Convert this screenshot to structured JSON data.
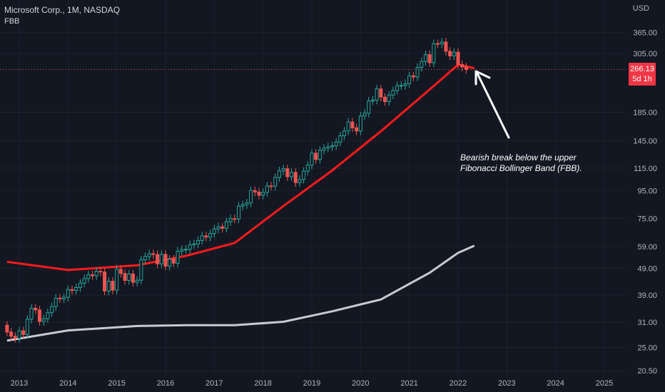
{
  "header": {
    "symbol_line": "Microsoft Corp., 1M, NASDAQ",
    "indicator": "FBB"
  },
  "axis": {
    "currency": "USD"
  },
  "price_tag": {
    "price": "266.13",
    "countdown": "5d 1h"
  },
  "annotation": {
    "line1": "Bearish break below the upper",
    "line2": "Fibonacci Bollinger Band (FBB)."
  },
  "colors": {
    "background": "#131722",
    "up": "#26a69a",
    "down": "#ef5350",
    "fbb_upper": "#ff1b1b",
    "fbb_basis": "#c9c9d1",
    "annotation_arrow": "#ffffff"
  },
  "chart_data": {
    "type": "candlestick",
    "y_scale": "log",
    "y_ticks": [
      "365.00",
      "305.00",
      "185.00",
      "145.00",
      "115.00",
      "95.00",
      "75.00",
      "59.00",
      "49.00",
      "39.00",
      "31.00",
      "25.00",
      "20.50"
    ],
    "x_ticks": [
      "2013",
      "2014",
      "2015",
      "2016",
      "2017",
      "2018",
      "2019",
      "2020",
      "2021",
      "2022",
      "2023",
      "2024",
      "2025"
    ],
    "current_price": 266.13,
    "series": [
      {
        "name": "Microsoft Corp. monthly",
        "style": "candles"
      },
      {
        "name": "FBB upper",
        "style": "line"
      },
      {
        "name": "FBB basis",
        "style": "line"
      }
    ],
    "close": [
      28.5,
      27.5,
      27.0,
      28.8,
      27.9,
      31.8,
      34.9,
      34.4,
      31.2,
      31.9,
      33.6,
      35.4,
      38.0,
      37.8,
      38.3,
      40.9,
      40.6,
      41.6,
      43.2,
      44.9,
      46.4,
      46.0,
      47.8,
      47.5,
      40.4,
      43.9,
      40.7,
      48.6,
      46.9,
      44.2,
      46.7,
      43.5,
      44.3,
      52.7,
      54.2,
      55.5,
      55.1,
      50.9,
      55.2,
      49.9,
      53.0,
      51.2,
      56.7,
      57.5,
      57.6,
      59.9,
      60.3,
      62.1,
      64.6,
      63.9,
      65.9,
      68.5,
      69.8,
      68.9,
      72.9,
      74.8,
      74.5,
      83.2,
      84.2,
      85.5,
      95.0,
      93.8,
      91.3,
      93.5,
      98.8,
      98.6,
      106.1,
      112.3,
      114.4,
      106.8,
      110.9,
      101.6,
      104.4,
      112.0,
      117.9,
      130.6,
      123.7,
      133.9,
      136.3,
      137.9,
      139.0,
      143.4,
      151.4,
      157.7,
      170.2,
      162.0,
      157.7,
      179.2,
      183.3,
      203.5,
      205.0,
      225.5,
      210.3,
      202.5,
      214.1,
      222.4,
      231.9,
      232.4,
      235.8,
      252.2,
      249.7,
      270.9,
      284.9,
      301.9,
      281.9,
      331.6,
      330.6,
      336.3,
      310.9,
      298.8,
      308.3,
      277.5,
      271.9,
      266.1
    ],
    "fbb_upper_anchor_dates": [
      "2012-10",
      "2014-01",
      "2015-06",
      "2016-06",
      "2017-06",
      "2018-06",
      "2019-06",
      "2020-06",
      "2021-06",
      "2022-01",
      "2022-05"
    ],
    "fbb_upper_anchor_values": [
      51.8,
      48.3,
      50.3,
      54.5,
      60.8,
      83.2,
      112.7,
      157.3,
      224.4,
      277.2,
      269.0
    ],
    "fbb_basis_anchor_dates": [
      "2012-10",
      "2014-01",
      "2015-06",
      "2016-06",
      "2017-06",
      "2018-06",
      "2019-06",
      "2020-06",
      "2021-06",
      "2022-01",
      "2022-05"
    ],
    "fbb_basis_anchor_values": [
      26.5,
      28.9,
      30.0,
      30.2,
      30.2,
      31.1,
      34.0,
      37.6,
      47.2,
      55.9,
      59.4
    ]
  }
}
